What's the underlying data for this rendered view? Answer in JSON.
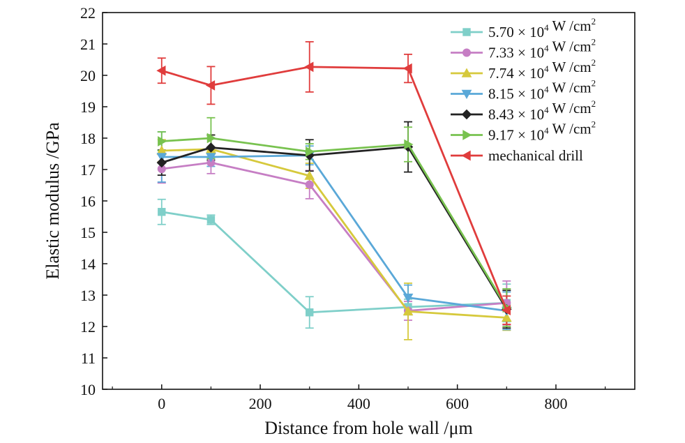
{
  "chart_data": {
    "type": "line",
    "title": "",
    "xlabel": "Distance from hole wall /μm",
    "ylabel": "Elastic modulus /GPa",
    "xlim": [
      -120,
      960
    ],
    "ylim": [
      10,
      22
    ],
    "xticks": [
      0,
      200,
      400,
      600,
      800
    ],
    "yticks": [
      10,
      11,
      12,
      13,
      14,
      15,
      16,
      17,
      18,
      19,
      20,
      21,
      22
    ],
    "x": [
      0,
      100,
      300,
      500,
      700
    ],
    "legend_position": "top-right",
    "series": [
      {
        "name": "5.70 × 10⁴ W /cm²",
        "legend": {
          "base": "5.70 × 10",
          "exp": "4",
          "unit": " W /cm",
          "unit_exp": "2"
        },
        "color": "#7fcfc9",
        "marker": "square",
        "values": [
          15.65,
          15.4,
          12.45,
          12.62,
          12.75
        ],
        "errors": [
          0.4,
          0.15,
          0.5,
          0.25,
          0.6
        ]
      },
      {
        "name": "7.33 × 10⁴ W /cm²",
        "legend": {
          "base": "7.33 × 10",
          "exp": "4",
          "unit": " W /cm",
          "unit_exp": "2"
        },
        "color": "#c67ec4",
        "marker": "circle",
        "values": [
          17.02,
          17.22,
          16.52,
          12.5,
          12.75
        ],
        "errors": [
          0.45,
          0.35,
          0.45,
          0.3,
          0.7
        ]
      },
      {
        "name": "7.74 × 10⁴ W /cm²",
        "legend": {
          "base": "7.74 × 10",
          "exp": "4",
          "unit": " W /cm",
          "unit_exp": "2"
        },
        "color": "#d6c93c",
        "marker": "triangle-up",
        "values": [
          17.6,
          17.65,
          16.8,
          12.48,
          12.28
        ],
        "errors": [
          0.35,
          0.45,
          0.4,
          0.9,
          0.4
        ]
      },
      {
        "name": "8.15 × 10⁴ W /cm²",
        "legend": {
          "base": "8.15 × 10",
          "exp": "4",
          "unit": " W /cm",
          "unit_exp": "2"
        },
        "color": "#5aa8d8",
        "marker": "triangle-down",
        "values": [
          17.4,
          17.4,
          17.45,
          12.92,
          12.5
        ],
        "errors": [
          0.8,
          0.3,
          0.3,
          0.4,
          0.6
        ]
      },
      {
        "name": "8.43 × 10⁴ W /cm²",
        "legend": {
          "base": "8.43 × 10",
          "exp": "4",
          "unit": " W /cm",
          "unit_exp": "2"
        },
        "color": "#222222",
        "marker": "diamond",
        "values": [
          17.22,
          17.7,
          17.45,
          17.72,
          12.55
        ],
        "errors": [
          0.4,
          0.4,
          0.5,
          0.8,
          0.6
        ]
      },
      {
        "name": "9.17 × 10⁴ W /cm²",
        "legend": {
          "base": "9.17 × 10",
          "exp": "4",
          "unit": " W /cm",
          "unit_exp": "2"
        },
        "color": "#78c24f",
        "marker": "triangle-right",
        "values": [
          17.9,
          18.0,
          17.57,
          17.8,
          12.6
        ],
        "errors": [
          0.3,
          0.65,
          0.25,
          0.55,
          0.6
        ]
      },
      {
        "name": "mechanical drill",
        "legend": {
          "base": "mechanical drill",
          "exp": "",
          "unit": "",
          "unit_exp": ""
        },
        "color": "#e03c3c",
        "marker": "triangle-left",
        "values": [
          20.15,
          19.68,
          20.27,
          20.22,
          12.52
        ],
        "errors": [
          0.4,
          0.6,
          0.8,
          0.45,
          0.45
        ]
      }
    ]
  }
}
